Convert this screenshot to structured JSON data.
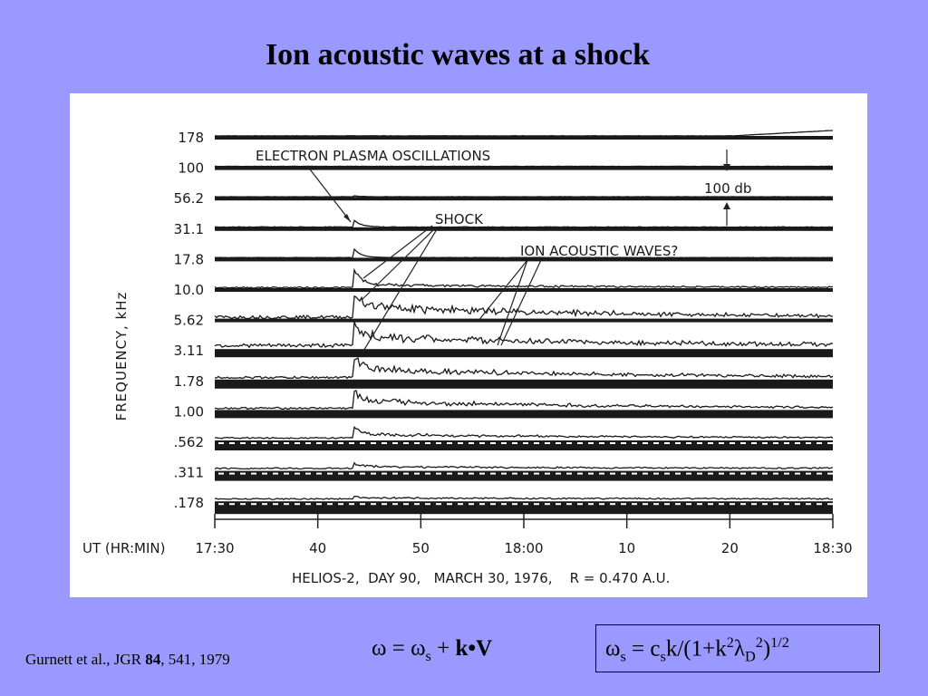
{
  "slide": {
    "title": "Ion acoustic waves at a shock",
    "citation_pre": "Gurnett et al., JGR ",
    "citation_vol": "84",
    "citation_post": ", 541, 1979",
    "background": "#9999ff"
  },
  "equations": {
    "left": {
      "omega": "ω",
      "eq": " = ω",
      "sub": "s",
      "plus": " + ",
      "kv": "k•V"
    },
    "box": {
      "omega": "ω",
      "sub_s": "s",
      "eq": " = c",
      "sub_s2": "s",
      "mid": "k/(1+k",
      "sup2a": "2",
      "lambda": "λ",
      "sub_d": "D",
      "sup2b": "2",
      "close": ")",
      "sup_half": "1/2"
    }
  },
  "chart_data": {
    "type": "line",
    "ylabel": "FREQUENCY,  kHz",
    "xlabel": "UT (HR:MIN)",
    "x_ticks": [
      "17:30",
      "40",
      "50",
      "18:00",
      "10",
      "20",
      "18:30"
    ],
    "x_range_minutes": [
      0,
      60
    ],
    "caption": "HELIOS-2,  DAY 90,   MARCH 30, 1976,    R = 0.470 A.U.",
    "channels": [
      "178",
      "100",
      "56.2",
      "31.1",
      "17.8",
      "10.0",
      "5.62",
      "3.11",
      "1.78",
      "1.00",
      ".562",
      ".311",
      ".178"
    ],
    "channel_profiles": [
      {
        "base": 0,
        "noise": 0.2,
        "shock": 0,
        "decay": 0,
        "band": 0,
        "end_rise": 6
      },
      {
        "base": 0,
        "noise": 0.2,
        "shock": 0,
        "decay": 0,
        "band": 0,
        "end_rise": 0
      },
      {
        "base": 0,
        "noise": 0.3,
        "shock": 1,
        "decay": 0,
        "band": 0,
        "end_rise": 0
      },
      {
        "base": 0,
        "noise": 0.6,
        "shock": 8,
        "decay": 0,
        "band": 0,
        "end_rise": 0
      },
      {
        "base": 0,
        "noise": 0.4,
        "shock": 10,
        "decay": 0,
        "band": 0,
        "end_rise": 0
      },
      {
        "base": 0,
        "noise": 1.5,
        "shock": 18,
        "decay": 3,
        "band": 0,
        "end_rise": 0
      },
      {
        "base": 0,
        "noise": 3.5,
        "shock": 16,
        "decay": 12,
        "band": 0,
        "end_rise": 0
      },
      {
        "base": 2,
        "noise": 4,
        "shock": 18,
        "decay": 10,
        "band": 5,
        "end_rise": 0
      },
      {
        "base": 1,
        "noise": 2.5,
        "shock": 14,
        "decay": 10,
        "band": 6,
        "end_rise": 0
      },
      {
        "base": 1,
        "noise": 2,
        "shock": 12,
        "decay": 8,
        "band": 5,
        "end_rise": 0
      },
      {
        "base": 2,
        "noise": 1.5,
        "shock": 8,
        "decay": 4,
        "band": 7,
        "end_rise": 0
      },
      {
        "base": 2,
        "noise": 1.5,
        "shock": 4,
        "decay": 2,
        "band": 7,
        "end_rise": 0
      },
      {
        "base": 2,
        "noise": 1.5,
        "shock": 2,
        "decay": 1,
        "band": 10,
        "end_rise": 0
      }
    ],
    "shock_time_minutes": 13.5,
    "annotations": {
      "electron_plasma": "ELECTRON  PLASMA  OSCILLATIONS",
      "shock": "SHOCK",
      "ion_acoustic": "ION  ACOUSTIC  WAVES?",
      "scale_bar": "100 db"
    },
    "grid": false
  }
}
